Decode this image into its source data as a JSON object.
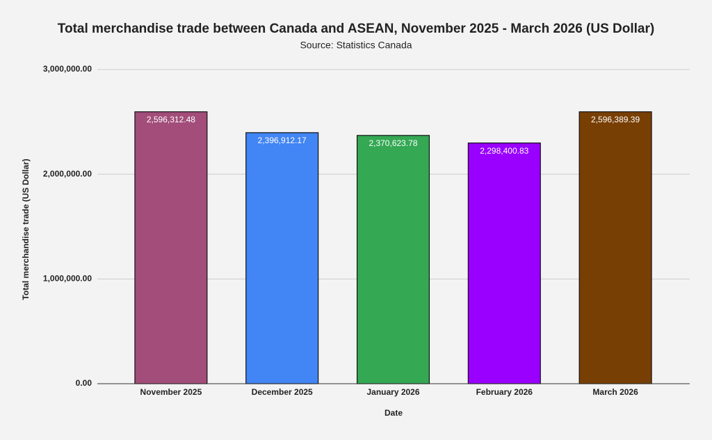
{
  "chart_data": {
    "type": "bar",
    "title": "Total merchandise trade between Canada and ASEAN, November 2025 - March 2026  (US Dollar)",
    "subtitle": "Source: Statistics Canada",
    "x_label": "Date",
    "y_label": "Total merchandise trade (US Dollar)",
    "categories": [
      "November 2025",
      "December 2025",
      "January 2026",
      "February 2026",
      "March 2026"
    ],
    "values": [
      2596312.48,
      2396912.17,
      2370623.78,
      2298400.83,
      2596389.39
    ],
    "value_labels": [
      "2,596,312.48",
      "2,396,912.17",
      "2,370,623.78",
      "2,298,400.83",
      "2,596,389.39"
    ],
    "colors": [
      "#a24d7a",
      "#4285f4",
      "#34a853",
      "#9900ff",
      "#783f04"
    ],
    "ylim": [
      0,
      3000000
    ],
    "yticks": [
      {
        "value": 0,
        "label": "0.00"
      },
      {
        "value": 1000000,
        "label": "1,000,000.00"
      },
      {
        "value": 2000000,
        "label": "2,000,000.00"
      },
      {
        "value": 3000000,
        "label": "3,000,000.00"
      }
    ],
    "grid": true
  }
}
